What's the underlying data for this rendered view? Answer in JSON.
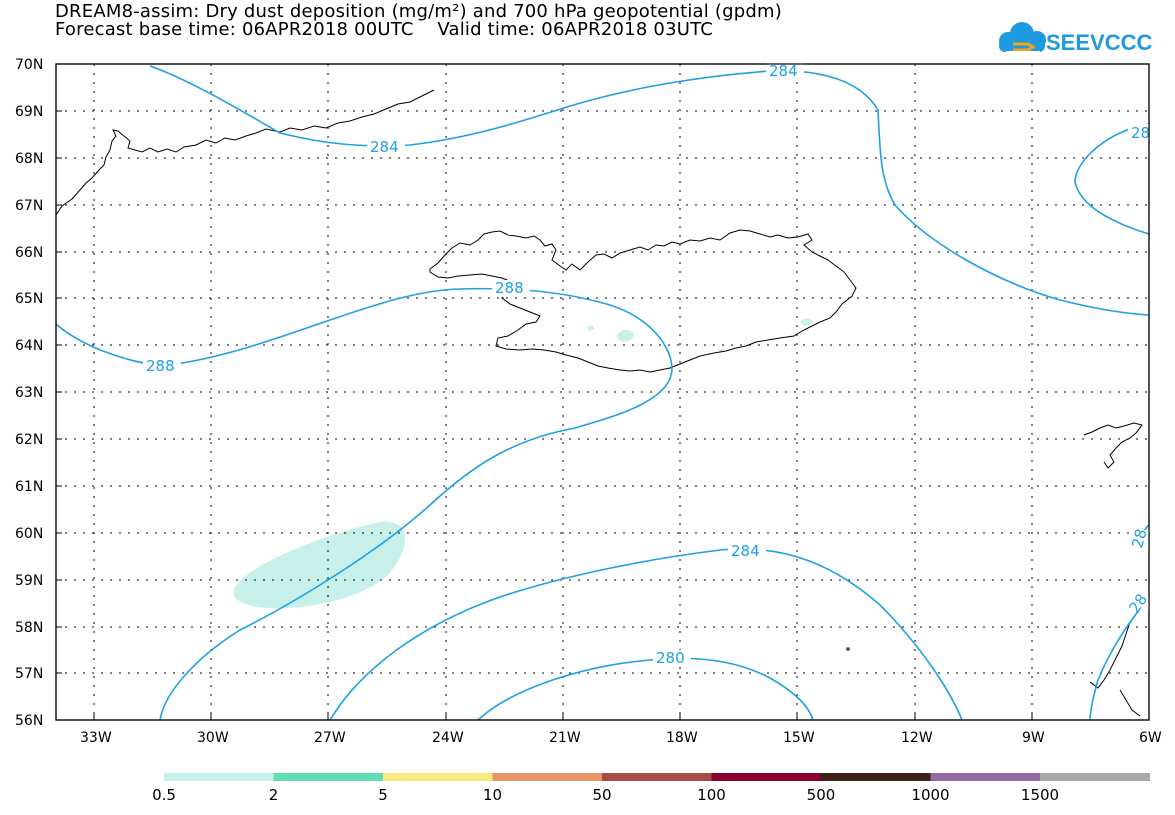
{
  "title_line1": "DREAM8-assim: Dry dust deposition (mg/m²) and 700 hPa geopotential (gpdm)",
  "title_line2": "Forecast base time: 06APR2018 00UTC    Valid time: 06APR2018 03UTC",
  "logo_text": "SEEVCCC",
  "latitude_labels": [
    "70N",
    "69N",
    "68N",
    "67N",
    "66N",
    "65N",
    "64N",
    "63N",
    "62N",
    "61N",
    "60N",
    "59N",
    "58N",
    "57N",
    "56N"
  ],
  "longitude_labels": [
    "33W",
    "30W",
    "27W",
    "24W",
    "21W",
    "18W",
    "15W",
    "12W",
    "9W",
    "6W"
  ],
  "contour_labels": {
    "a": "284",
    "b": "284",
    "c": "28",
    "d": "288",
    "e": "288",
    "f": "284",
    "g": "280",
    "h": "28",
    "i": "28"
  },
  "colorbar": {
    "labels": [
      "0.5",
      "2",
      "5",
      "10",
      "50",
      "100",
      "500",
      "1000",
      "1500"
    ],
    "colors": [
      "#c8f0ea",
      "#5ee0b4",
      "#f8e880",
      "#e8956a",
      "#a84c46",
      "#8a0032",
      "#3a2418",
      "#946aa0",
      "#a8a8a8"
    ]
  },
  "colors": {
    "contour": "#1ea0e6",
    "dust_low": "#c8f0ea"
  }
}
